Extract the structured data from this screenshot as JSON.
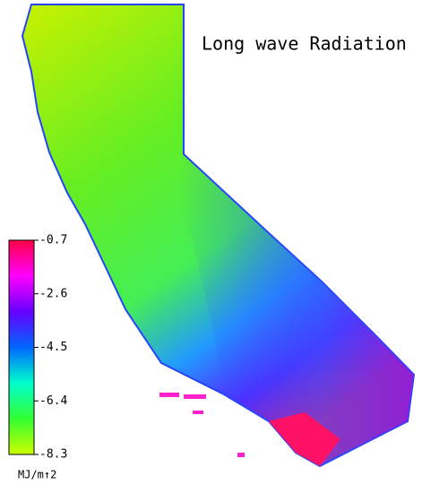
{
  "title": "Long wave Radiation",
  "colorbar": {
    "lim": [
      -8.3,
      -0.7
    ],
    "ticks": [
      -0.7,
      -2.6,
      -4.5,
      -6.4,
      -8.3
    ],
    "label": "MJ/m↑2",
    "colors": [
      "#ccff00",
      "#33ff33",
      "#00ffcc",
      "#0066ff",
      "#6600ff",
      "#ff00ff",
      "#ff0044"
    ]
  }
}
